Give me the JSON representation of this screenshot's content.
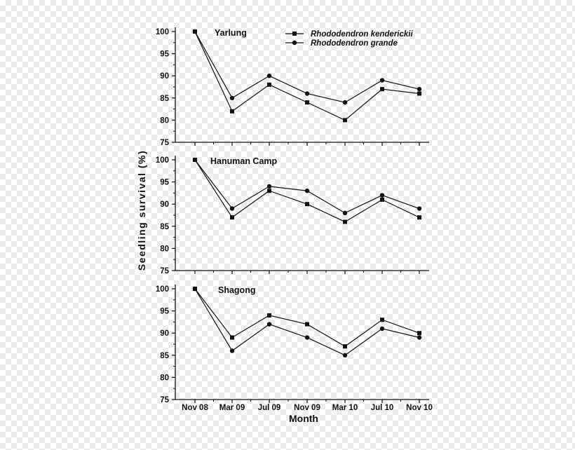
{
  "chart_data": {
    "type": "line",
    "ylabel": "Seedling survival (%)",
    "xlabel": "Month",
    "categories": [
      "Nov 08",
      "Mar 09",
      "Jul 09",
      "Nov 09",
      "Mar 10",
      "Jul 10",
      "Nov 10"
    ],
    "ylim": [
      75,
      100
    ],
    "yticks": [
      75,
      80,
      85,
      90,
      95,
      100
    ],
    "legend": {
      "position": "top-right",
      "entries": [
        {
          "name": "Rhododendron kenderickii",
          "marker": "square"
        },
        {
          "name": "Rhododendron grande",
          "marker": "circle"
        }
      ]
    },
    "panels": [
      {
        "title": "Yarlung",
        "series": [
          {
            "name": "Rhododendron kenderickii",
            "marker": "square",
            "values": [
              100,
              82,
              88,
              84,
              80,
              87,
              86
            ]
          },
          {
            "name": "Rhododendron grande",
            "marker": "circle",
            "values": [
              100,
              85,
              90,
              86,
              84,
              89,
              87
            ]
          }
        ]
      },
      {
        "title": "Hanuman Camp",
        "series": [
          {
            "name": "Rhododendron kenderickii",
            "marker": "square",
            "values": [
              100,
              87,
              93,
              90,
              86,
              91,
              87
            ]
          },
          {
            "name": "Rhododendron grande",
            "marker": "circle",
            "values": [
              100,
              89,
              94,
              93,
              88,
              92,
              89
            ]
          }
        ]
      },
      {
        "title": "Shagong",
        "series": [
          {
            "name": "Rhododendron kenderickii",
            "marker": "square",
            "values": [
              100,
              89,
              94,
              92,
              87,
              93,
              90
            ]
          },
          {
            "name": "Rhododendron grande",
            "marker": "circle",
            "values": [
              100,
              86,
              92,
              89,
              85,
              91,
              89
            ]
          }
        ]
      }
    ],
    "colors": {
      "line": "#111111",
      "axis": "#111111"
    }
  }
}
